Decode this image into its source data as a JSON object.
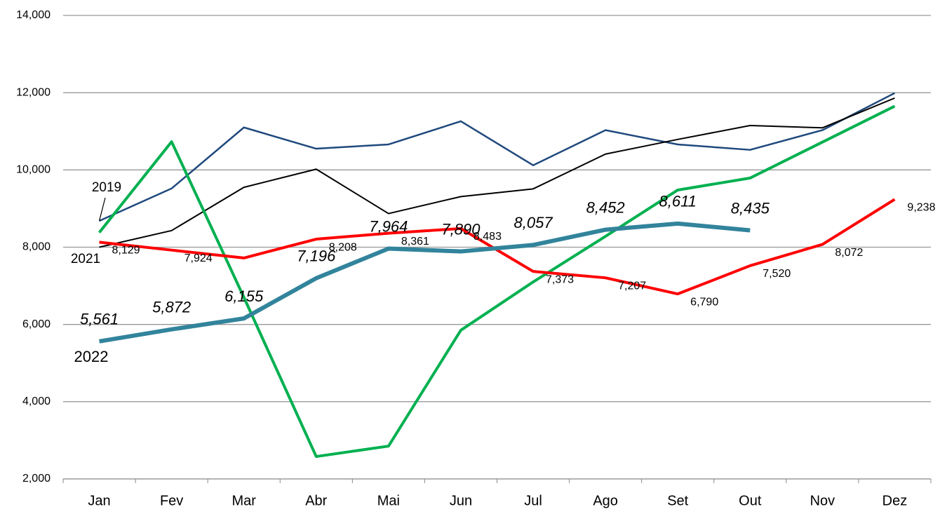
{
  "chart_data": {
    "type": "line",
    "categories": [
      "Jan",
      "Fev",
      "Mar",
      "Abr",
      "Mai",
      "Jun",
      "Jul",
      "Ago",
      "Set",
      "Out",
      "Nov",
      "Dez"
    ],
    "series": [
      {
        "name": "2019",
        "color": "#1f497d",
        "values": [
          8680,
          9520,
          11100,
          10550,
          10660,
          11260,
          10120,
          11030,
          10660,
          10520,
          11030,
          11990
        ]
      },
      {
        "color": "#000000",
        "values": [
          8000,
          8430,
          9550,
          10020,
          8870,
          9310,
          9510,
          10410,
          10790,
          11150,
          11090,
          11860
        ]
      },
      {
        "color": "#00b050",
        "values": [
          8380,
          10730,
          6700,
          2580,
          2850,
          5850,
          7100,
          8280,
          9480,
          9790,
          10720,
          11650
        ]
      },
      {
        "name": "2021",
        "color": "#ff0000",
        "values": [
          8129,
          7924,
          7720,
          8208,
          8361,
          8483,
          7373,
          7207,
          6790,
          7520,
          8072,
          9238
        ],
        "value_labels": [
          "8,129",
          "7,924",
          null,
          "8,208",
          "8,361",
          "8,483",
          "7,373",
          "7,207",
          "6,790",
          "7,520",
          "8,072",
          "9,238"
        ]
      },
      {
        "name": "2022",
        "color": "#31849b",
        "values": [
          5561,
          5872,
          6155,
          7196,
          7964,
          7890,
          8057,
          8452,
          8611,
          8435,
          null,
          null
        ],
        "value_labels": [
          "5,561",
          "5,872",
          "6,155",
          "7,196",
          "7,964",
          "7,890",
          "8,057",
          "8,452",
          "8,611",
          "8,435",
          null,
          null
        ]
      }
    ],
    "ylim": [
      2000,
      14000
    ],
    "yticks": [
      {
        "value": 2000,
        "label": "2,000"
      },
      {
        "value": 4000,
        "label": "4,000"
      },
      {
        "value": 6000,
        "label": "6,000"
      },
      {
        "value": 8000,
        "label": "8,000"
      },
      {
        "value": 10000,
        "label": "10,000"
      },
      {
        "value": 12000,
        "label": "12,000"
      },
      {
        "value": 14000,
        "label": "14,000"
      }
    ],
    "grid": true
  }
}
